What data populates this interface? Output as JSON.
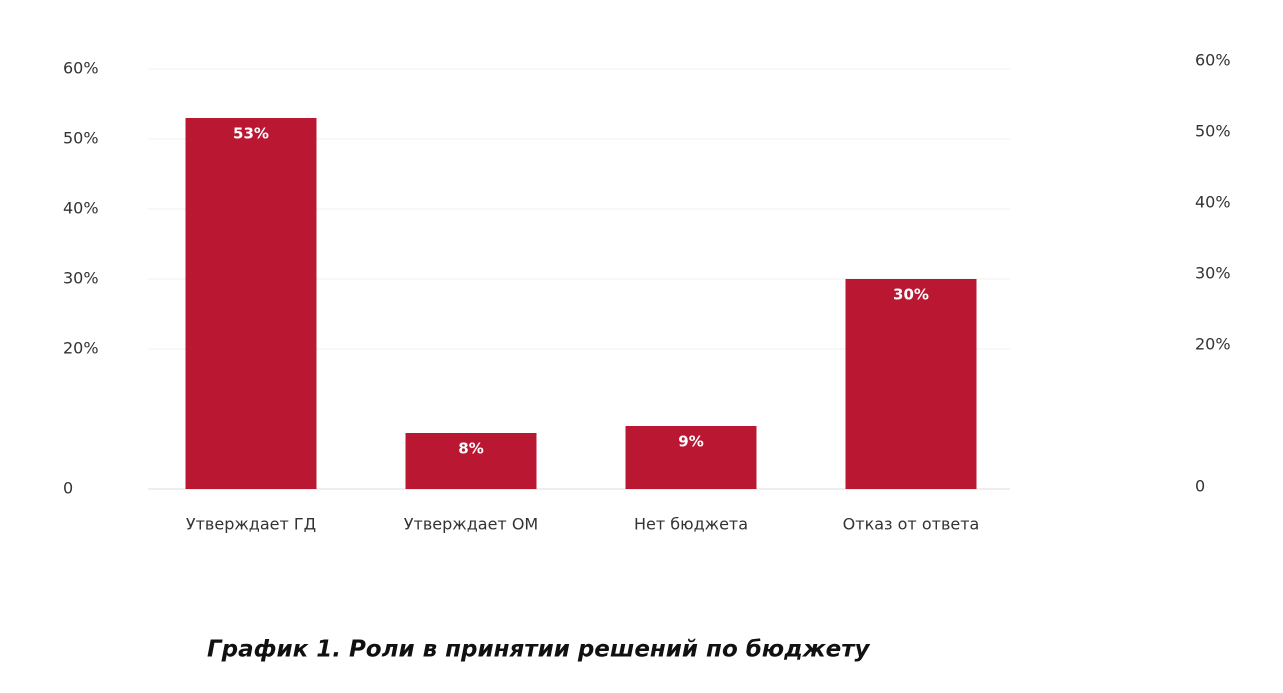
{
  "chart_data": {
    "type": "bar",
    "title": "График 1. Роли в принятии решений по бюджету",
    "categories": [
      "Утверждает ГД",
      "Утверждает ОМ",
      "Нет бюджета",
      "Отказ от ответа"
    ],
    "values": [
      53,
      8,
      9,
      30
    ],
    "value_labels": [
      "53%",
      "8%",
      "9%",
      "30%"
    ],
    "color": "#b91732",
    "ylim": [
      0,
      60
    ],
    "yticks": [
      0,
      {
        "value": 20,
        "label": "20%"
      },
      {
        "value": 30,
        "label": "30%"
      },
      {
        "value": 40,
        "label": "40%"
      },
      {
        "value": 50,
        "label": "50%"
      },
      {
        "value": 60,
        "label": "60%"
      }
    ],
    "y2lim": [
      0,
      60
    ],
    "y2ticks": [
      0,
      {
        "value": 20,
        "label": "20%"
      },
      {
        "value": 30,
        "label": "30%"
      },
      {
        "value": 40,
        "label": "40%"
      },
      {
        "value": 50,
        "label": "50%"
      },
      {
        "value": 60,
        "label": "60%"
      }
    ],
    "grid": true
  }
}
